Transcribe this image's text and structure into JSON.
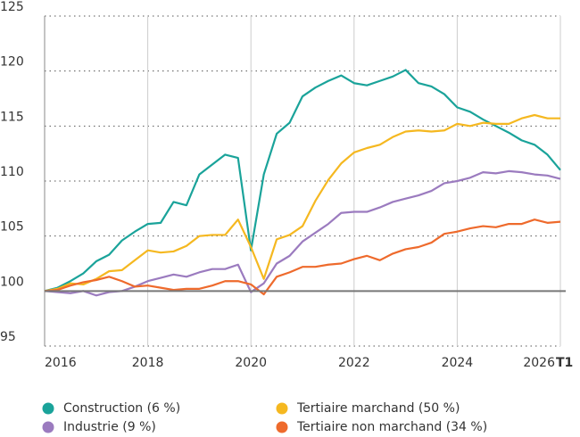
{
  "chart_data": {
    "type": "line",
    "x": [
      2016,
      2016.25,
      2016.5,
      2016.75,
      2017,
      2017.25,
      2017.5,
      2017.75,
      2018,
      2018.25,
      2018.5,
      2018.75,
      2019,
      2019.25,
      2019.5,
      2019.75,
      2020,
      2020.25,
      2020.5,
      2020.75,
      2021,
      2021.25,
      2021.5,
      2021.75,
      2022,
      2022.25,
      2022.5,
      2022.75,
      2023,
      2023.25,
      2023.5,
      2023.75,
      2024,
      2024.25,
      2024.5,
      2024.75,
      2025,
      2025.25,
      2025.5,
      2025.75,
      2026
    ],
    "series": [
      {
        "name": "Construction (6 %)",
        "color": "#1aa39a",
        "values": [
          100,
          100.3,
          100.9,
          101.6,
          102.7,
          103.3,
          104.6,
          105.4,
          106.1,
          106.2,
          108.1,
          107.8,
          110.6,
          111.5,
          112.4,
          112.1,
          103.7,
          110.6,
          114.3,
          115.3,
          117.7,
          118.5,
          119.1,
          119.6,
          118.9,
          118.7,
          119.1,
          119.5,
          120.1,
          118.9,
          118.6,
          117.9,
          116.7,
          116.3,
          115.6,
          115.0,
          114.4,
          113.7,
          113.3,
          112.4,
          111.0
        ]
      },
      {
        "name": "Tertiaire marchand (50 %)",
        "color": "#f5b820",
        "values": [
          100,
          100.2,
          100.7,
          100.6,
          101.1,
          101.8,
          101.9,
          102.8,
          103.7,
          103.5,
          103.6,
          104.1,
          105.0,
          105.1,
          105.1,
          106.5,
          104.0,
          101.1,
          104.7,
          105.1,
          105.9,
          108.2,
          110.1,
          111.6,
          112.6,
          113.0,
          113.3,
          114.0,
          114.5,
          114.6,
          114.5,
          114.6,
          115.2,
          115.0,
          115.3,
          115.2,
          115.2,
          115.7,
          116.0,
          115.7,
          115.7
        ]
      },
      {
        "name": "Industrie (9 %)",
        "color": "#9b7bbf",
        "values": [
          100,
          99.9,
          99.8,
          100.0,
          99.6,
          99.9,
          100.0,
          100.4,
          100.9,
          101.2,
          101.5,
          101.3,
          101.7,
          102.0,
          102.0,
          102.4,
          99.9,
          100.7,
          102.5,
          103.2,
          104.5,
          105.3,
          106.1,
          107.1,
          107.2,
          107.2,
          107.6,
          108.1,
          108.4,
          108.7,
          109.1,
          109.8,
          110.0,
          110.3,
          110.8,
          110.7,
          110.9,
          110.8,
          110.6,
          110.5,
          110.2
        ]
      },
      {
        "name": "Tertiaire non marchand (34 %)",
        "color": "#ee6a2c",
        "values": [
          100,
          100.1,
          100.5,
          100.8,
          101.0,
          101.3,
          100.9,
          100.4,
          100.5,
          100.3,
          100.1,
          100.2,
          100.2,
          100.5,
          100.9,
          100.9,
          100.6,
          99.7,
          101.3,
          101.7,
          102.2,
          102.2,
          102.4,
          102.5,
          102.9,
          103.2,
          102.8,
          103.4,
          103.8,
          104.0,
          104.4,
          105.2,
          105.4,
          105.7,
          105.9,
          105.8,
          106.1,
          106.1,
          106.5,
          106.2,
          106.3
        ]
      }
    ],
    "xlim": [
      2016,
      2026
    ],
    "xticks": [
      2016,
      2018,
      2020,
      2022,
      2024,
      2026
    ],
    "xtick_suffix": "T1",
    "ylim": [
      95,
      125
    ],
    "yticks": [
      95,
      100,
      105,
      110,
      115,
      120,
      125
    ],
    "baseline": 100,
    "grid": true
  }
}
